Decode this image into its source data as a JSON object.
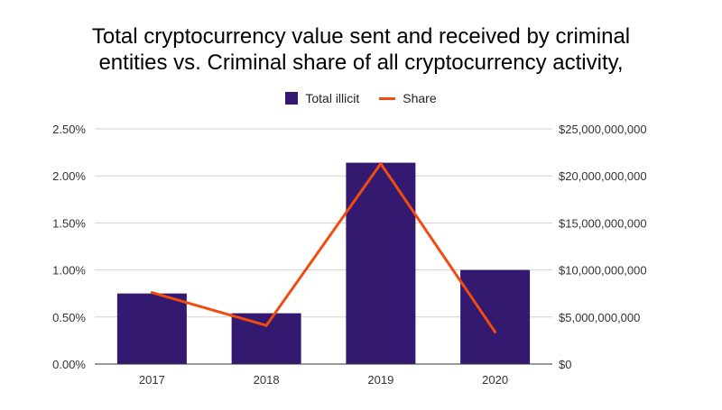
{
  "chart_data": {
    "type": "bar",
    "title_lines": [
      "Total cryptocurrency value sent and received by criminal",
      "entities vs. Criminal share of all cryptocurrency activity,"
    ],
    "categories": [
      "2017",
      "2018",
      "2019",
      "2020"
    ],
    "series": [
      {
        "name": "Total illicit",
        "type": "bar",
        "axis": "right",
        "values": [
          7500000000,
          5400000000,
          21400000000,
          10000000000
        ],
        "color": "#33196f"
      },
      {
        "name": "Share",
        "type": "line",
        "axis": "left",
        "values": [
          0.0076,
          0.0041,
          0.0213,
          0.0034
        ],
        "color": "#f24b0f"
      }
    ],
    "left_axis": {
      "ylim": [
        0,
        0.025
      ],
      "tick_labels": [
        "0.00%",
        "0.50%",
        "1.00%",
        "1.50%",
        "2.00%",
        "2.50%"
      ]
    },
    "right_axis": {
      "ylim": [
        0,
        25000000000
      ],
      "tick_labels": [
        "$0",
        "$5,000,000,000",
        "$10,000,000,000",
        "$15,000,000,000",
        "$20,000,000,000",
        "$25,000,000,000"
      ]
    },
    "grid": true,
    "legend_position": "top"
  }
}
